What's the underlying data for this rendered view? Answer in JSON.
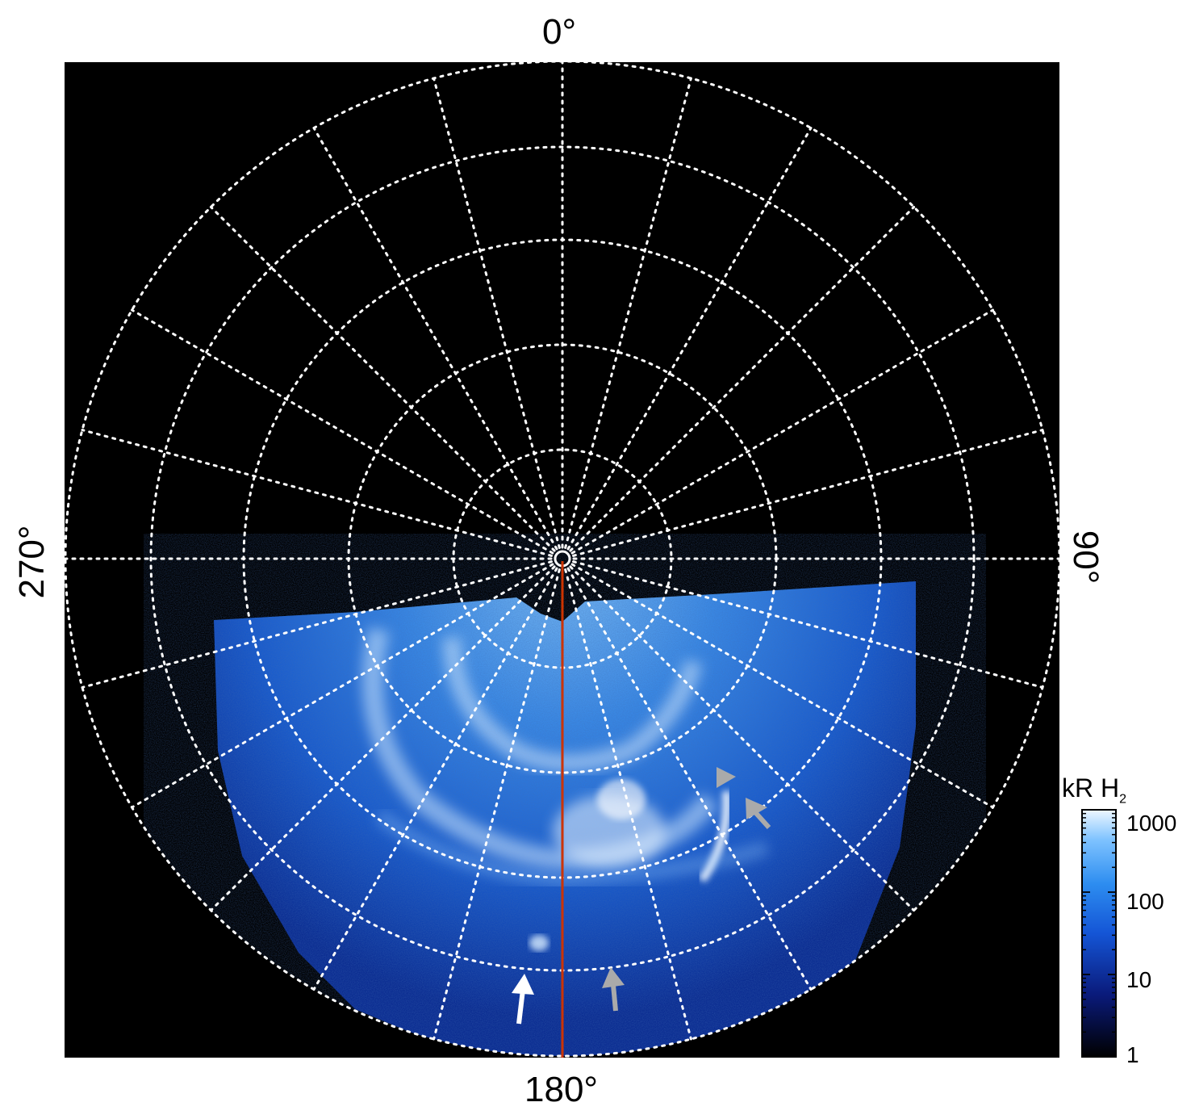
{
  "figure": {
    "lon_labels": {
      "top": "0°",
      "right": "90°",
      "bottom": "180°",
      "left": "270°"
    },
    "colorbar": {
      "title_main": "kR H",
      "title_sub": "2",
      "ticks": [
        "1000",
        "100",
        "10",
        "1"
      ],
      "scale": "log",
      "range": [
        1,
        1000
      ],
      "colors": [
        "#000000",
        "#0a1a7a",
        "#1455d6",
        "#2d8df0",
        "#7fc3ff",
        "#e8f4ff"
      ]
    },
    "colors": {
      "background": "#000000",
      "grid": "#ffffff",
      "central_meridian": "#cc3300",
      "arrow_white": "#ffffff",
      "arrow_grey": "#aaaaaa"
    },
    "arrows": [
      "white",
      "grey",
      "grey",
      "grey"
    ]
  }
}
